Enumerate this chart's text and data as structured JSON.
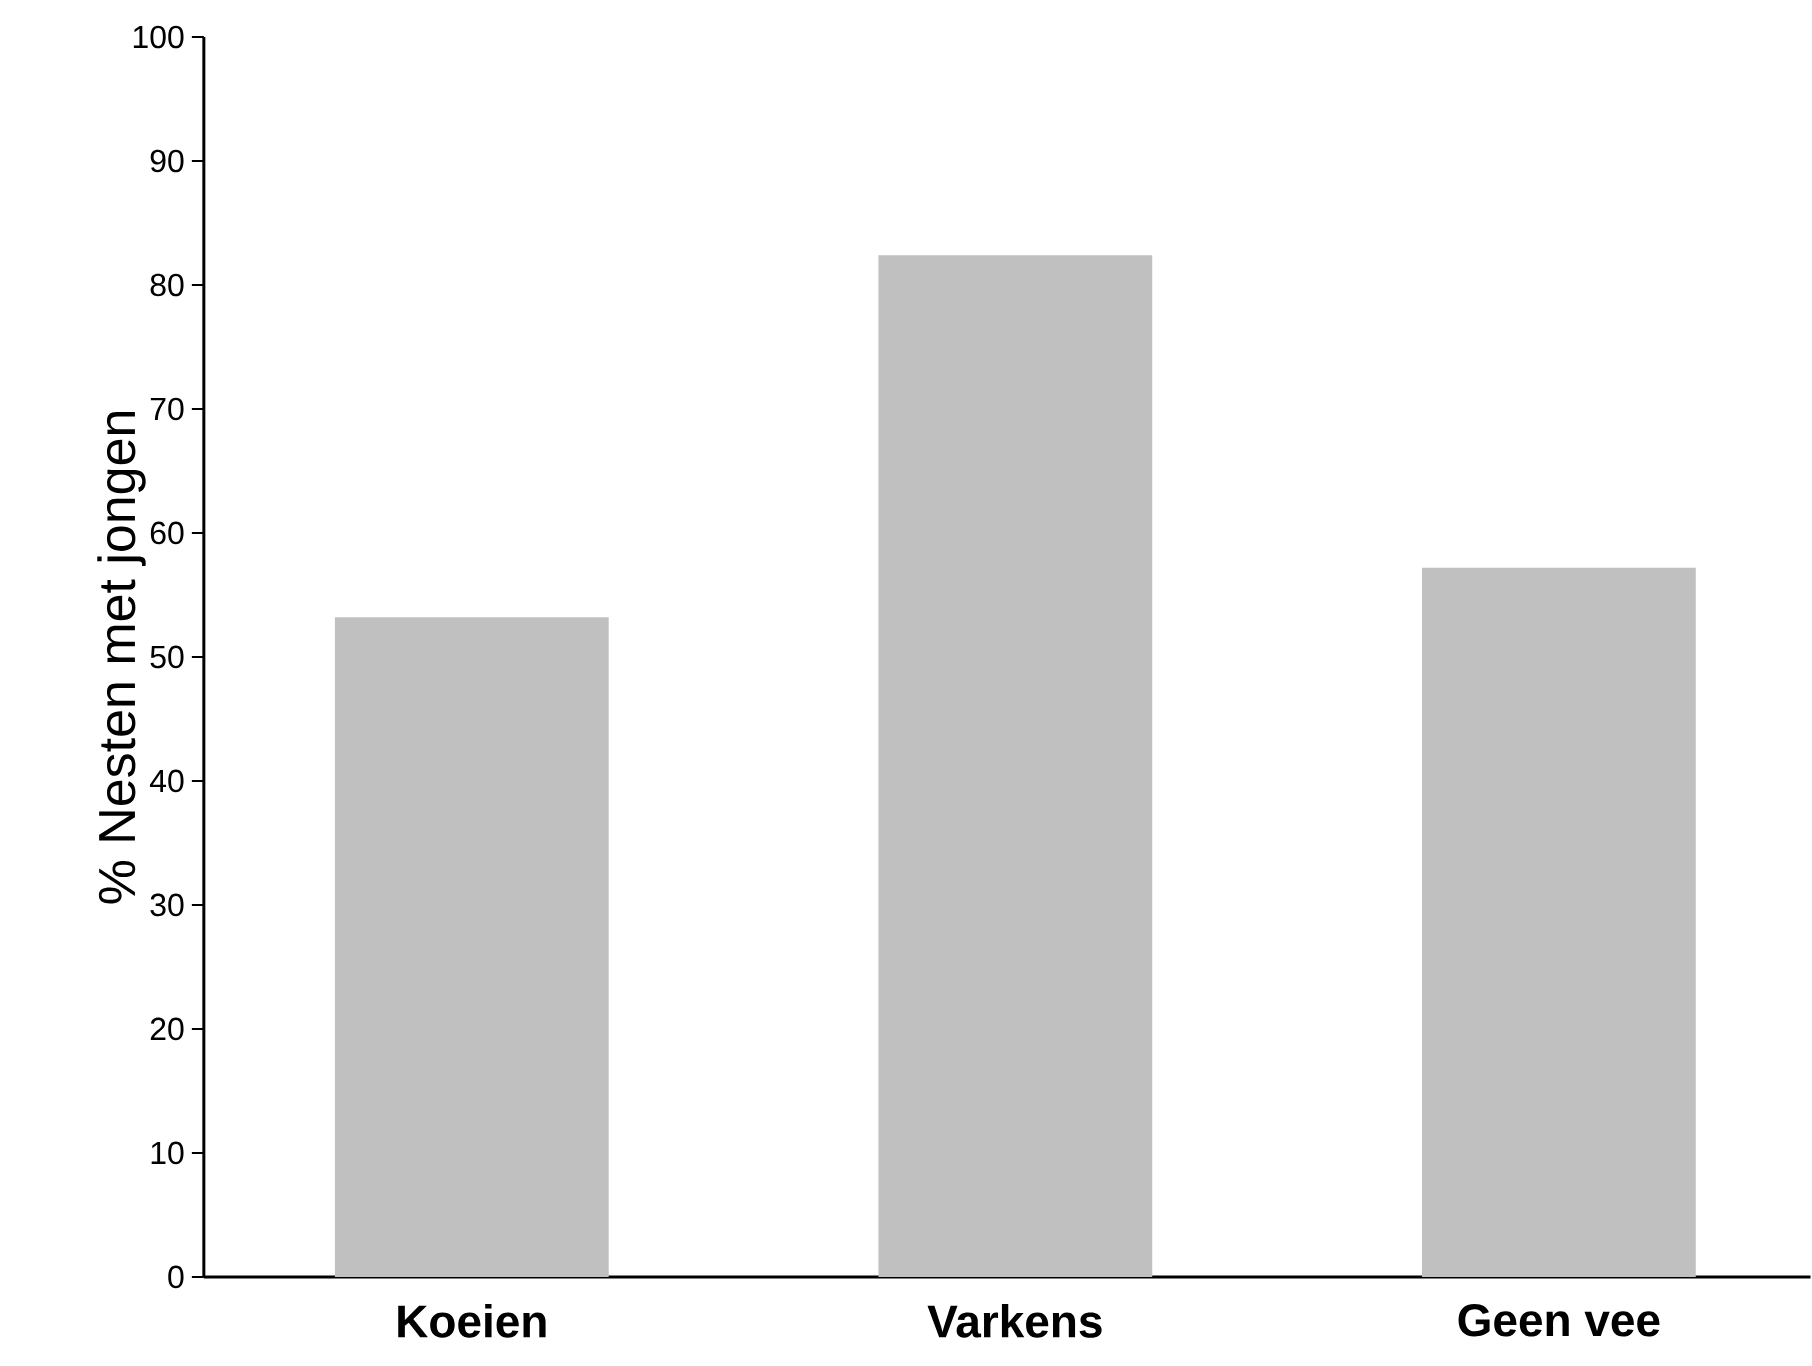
{
  "chart_data": {
    "type": "bar",
    "ylabel": "% Nesten met jongen",
    "categories": [
      "Koeien",
      "Varkens",
      "Geen vee"
    ],
    "values": [
      53.2,
      82.4,
      57.2
    ],
    "color": "#c0c0c0",
    "ylim": [
      0,
      100
    ],
    "yticks": [
      0,
      10,
      20,
      30,
      40,
      50,
      60,
      70,
      80,
      90,
      100
    ],
    "grid": false
  }
}
